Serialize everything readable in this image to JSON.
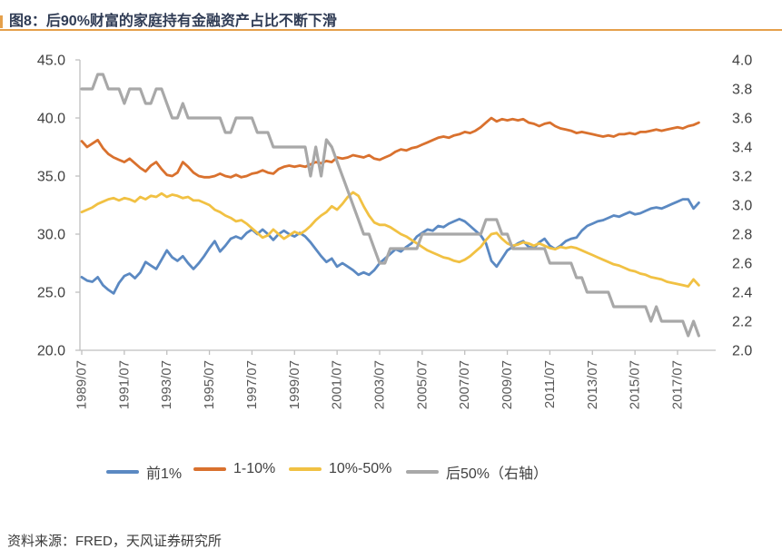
{
  "figure": {
    "title": "图8：后90%财富的家庭持有金融资产占比不断下滑",
    "source": "资料来源：FRED，天风证券研究所"
  },
  "colors": {
    "accent_rule": "#E5A04B",
    "title_text": "#2F3B54",
    "axis_line": "#BFBFBF",
    "axis_text": "#404040"
  },
  "chart_data": {
    "type": "line",
    "x_unit": "quarter",
    "x_start": "1989/07",
    "x_tick_labels": [
      "1989/07",
      "1991/07",
      "1993/07",
      "1995/07",
      "1997/07",
      "1999/07",
      "2001/07",
      "2003/07",
      "2005/07",
      "2007/07",
      "2009/07",
      "2011/07",
      "2013/07",
      "2015/07",
      "2017/07"
    ],
    "left_axis": {
      "min": 20.0,
      "max": 45.0,
      "step": 5.0,
      "tick_labels": [
        "45.0",
        "40.0",
        "35.0",
        "30.0",
        "25.0",
        "20.0"
      ]
    },
    "right_axis": {
      "min": 2.0,
      "max": 4.0,
      "step": 0.2,
      "tick_labels": [
        "4.0",
        "3.8",
        "3.6",
        "3.4",
        "3.2",
        "3.0",
        "2.8",
        "2.6",
        "2.4",
        "2.2",
        "2.0"
      ]
    },
    "legend_position": "bottom",
    "grid": false,
    "series": [
      {
        "name": "前1%",
        "axis": "left",
        "color": "#5B89C2",
        "width": 2.8,
        "values": [
          26.3,
          26.0,
          25.9,
          26.3,
          25.6,
          25.2,
          24.9,
          25.8,
          26.4,
          26.6,
          26.2,
          26.7,
          27.6,
          27.3,
          27.0,
          27.8,
          28.6,
          28.0,
          27.7,
          28.1,
          27.5,
          27.0,
          27.5,
          28.1,
          28.8,
          29.4,
          28.5,
          29.0,
          29.6,
          29.8,
          29.6,
          30.1,
          30.4,
          30.0,
          30.4,
          30.0,
          29.5,
          30.0,
          30.3,
          30.0,
          29.8,
          30.1,
          29.8,
          29.3,
          28.7,
          28.1,
          27.6,
          27.9,
          27.2,
          27.5,
          27.2,
          26.9,
          26.5,
          26.7,
          26.5,
          26.9,
          27.5,
          27.9,
          28.3,
          28.7,
          28.5,
          28.9,
          29.2,
          29.8,
          30.1,
          30.4,
          30.3,
          30.7,
          30.6,
          30.9,
          31.1,
          31.3,
          31.1,
          30.7,
          30.3,
          29.9,
          29.2,
          27.7,
          27.2,
          27.9,
          28.6,
          28.9,
          29.2,
          29.4,
          28.9,
          28.8,
          29.3,
          29.6,
          29.0,
          28.7,
          29.0,
          29.4,
          29.6,
          29.7,
          30.3,
          30.7,
          30.9,
          31.1,
          31.2,
          31.4,
          31.6,
          31.5,
          31.7,
          31.9,
          31.7,
          31.8,
          32.0,
          32.2,
          32.3,
          32.2,
          32.4,
          32.6,
          32.8,
          33.0,
          33.0,
          32.2,
          32.7
        ]
      },
      {
        "name": "1-10%",
        "axis": "left",
        "color": "#D9712E",
        "width": 2.8,
        "values": [
          38.0,
          37.5,
          37.8,
          38.1,
          37.4,
          36.9,
          36.6,
          36.4,
          36.2,
          36.5,
          36.1,
          35.7,
          35.4,
          35.9,
          36.2,
          35.6,
          35.1,
          35.0,
          35.3,
          36.2,
          35.8,
          35.3,
          35.0,
          34.9,
          34.9,
          35.0,
          35.2,
          35.0,
          34.9,
          35.1,
          34.9,
          35.0,
          35.2,
          35.3,
          35.5,
          35.3,
          35.2,
          35.6,
          35.8,
          35.9,
          35.8,
          35.9,
          35.8,
          36.0,
          36.2,
          36.1,
          36.3,
          36.2,
          36.6,
          36.5,
          36.6,
          36.8,
          36.7,
          36.6,
          36.8,
          36.5,
          36.4,
          36.6,
          36.8,
          37.1,
          37.3,
          37.2,
          37.4,
          37.5,
          37.7,
          37.9,
          38.1,
          38.3,
          38.4,
          38.3,
          38.5,
          38.6,
          38.8,
          38.7,
          38.9,
          39.2,
          39.6,
          40.0,
          39.7,
          39.9,
          39.8,
          39.9,
          39.8,
          39.9,
          39.6,
          39.5,
          39.3,
          39.5,
          39.6,
          39.3,
          39.1,
          39.0,
          38.9,
          38.7,
          38.8,
          38.7,
          38.6,
          38.5,
          38.4,
          38.5,
          38.4,
          38.6,
          38.6,
          38.7,
          38.6,
          38.8,
          38.8,
          38.9,
          39.0,
          38.9,
          39.0,
          39.1,
          39.2,
          39.1,
          39.3,
          39.4,
          39.6
        ]
      },
      {
        "name": "10%-50%",
        "axis": "left",
        "color": "#F1C143",
        "width": 2.8,
        "values": [
          31.9,
          32.1,
          32.3,
          32.6,
          32.8,
          33.0,
          33.1,
          32.9,
          33.1,
          33.0,
          32.8,
          33.2,
          33.0,
          33.3,
          33.2,
          33.5,
          33.2,
          33.4,
          33.3,
          33.1,
          33.2,
          32.9,
          32.9,
          32.7,
          32.5,
          32.1,
          31.9,
          31.6,
          31.4,
          31.1,
          31.2,
          30.9,
          30.5,
          30.1,
          29.7,
          29.9,
          30.4,
          30.0,
          29.6,
          29.9,
          30.2,
          30.0,
          30.3,
          30.7,
          31.2,
          31.6,
          31.9,
          32.4,
          32.1,
          32.6,
          33.2,
          33.6,
          33.3,
          32.4,
          31.6,
          31.0,
          30.8,
          30.8,
          30.6,
          30.3,
          30.0,
          29.8,
          29.5,
          29.2,
          28.9,
          28.6,
          28.4,
          28.2,
          28.0,
          27.9,
          27.7,
          27.6,
          27.8,
          28.1,
          28.5,
          28.9,
          29.5,
          30.0,
          30.1,
          29.6,
          29.2,
          29.0,
          29.1,
          29.3,
          29.2,
          29.0,
          29.2,
          29.0,
          28.8,
          28.7,
          28.9,
          28.8,
          28.9,
          28.8,
          28.6,
          28.4,
          28.2,
          28.0,
          27.8,
          27.6,
          27.4,
          27.3,
          27.1,
          26.9,
          26.8,
          26.6,
          26.5,
          26.3,
          26.2,
          26.1,
          25.9,
          25.8,
          25.7,
          25.6,
          25.5,
          26.1,
          25.6
        ]
      },
      {
        "name": "后50%（右轴）",
        "axis": "right",
        "color": "#A8A8A8",
        "width": 3.2,
        "values": [
          3.8,
          3.8,
          3.8,
          3.9,
          3.9,
          3.8,
          3.8,
          3.8,
          3.7,
          3.8,
          3.8,
          3.8,
          3.7,
          3.7,
          3.8,
          3.8,
          3.7,
          3.6,
          3.6,
          3.7,
          3.6,
          3.6,
          3.6,
          3.6,
          3.6,
          3.6,
          3.6,
          3.5,
          3.5,
          3.6,
          3.6,
          3.6,
          3.6,
          3.5,
          3.5,
          3.5,
          3.4,
          3.4,
          3.4,
          3.4,
          3.4,
          3.4,
          3.4,
          3.2,
          3.4,
          3.2,
          3.45,
          3.4,
          3.3,
          3.2,
          3.1,
          3.0,
          2.9,
          2.8,
          2.8,
          2.7,
          2.6,
          2.6,
          2.7,
          2.7,
          2.7,
          2.7,
          2.7,
          2.7,
          2.8,
          2.8,
          2.8,
          2.8,
          2.8,
          2.8,
          2.8,
          2.8,
          2.8,
          2.8,
          2.8,
          2.8,
          2.9,
          2.9,
          2.9,
          2.8,
          2.8,
          2.7,
          2.7,
          2.7,
          2.7,
          2.7,
          2.7,
          2.7,
          2.6,
          2.6,
          2.6,
          2.6,
          2.6,
          2.5,
          2.5,
          2.4,
          2.4,
          2.4,
          2.4,
          2.4,
          2.3,
          2.3,
          2.3,
          2.3,
          2.3,
          2.3,
          2.3,
          2.2,
          2.3,
          2.2,
          2.2,
          2.2,
          2.2,
          2.2,
          2.1,
          2.2,
          2.1
        ]
      }
    ]
  }
}
